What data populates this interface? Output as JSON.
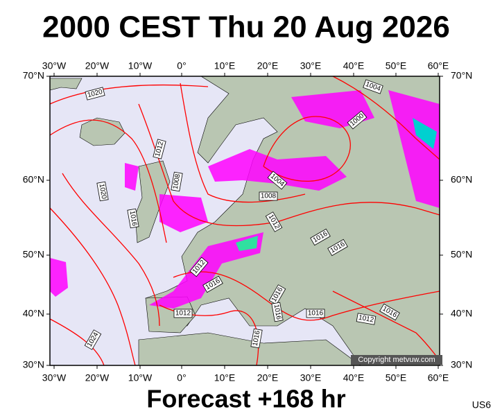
{
  "title": "2000 CEST Thu 20 Aug 2026",
  "footer": "Forecast +168 hr",
  "code": "US6",
  "copyright": "Copyright metvuw.com",
  "map": {
    "lon_labels": [
      "30°W",
      "20°W",
      "10°W",
      "0°",
      "10°E",
      "20°E",
      "30°E",
      "40°E",
      "50°E",
      "60°E"
    ],
    "lat_labels": [
      "70°N",
      "60°N",
      "50°N",
      "40°N",
      "30°N"
    ],
    "isobar_labels": [
      "1020",
      "1004",
      "1000",
      "1012",
      "1008",
      "1004",
      "1008",
      "1020",
      "1016",
      "1012",
      "1016",
      "1016",
      "1012",
      "1016",
      "1016",
      "1016",
      "1012",
      "1016",
      "1012",
      "1016",
      "1024",
      "1016"
    ]
  }
}
